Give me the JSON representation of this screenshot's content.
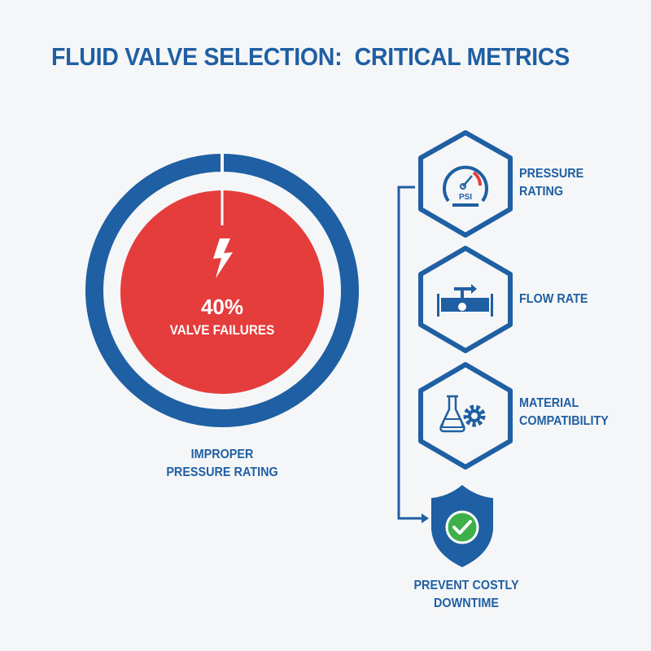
{
  "title": "FLUID VALVE SELECTION:  CRITICAL METRICS",
  "stat": {
    "percent": "40%",
    "label": "VALVE FAILURES",
    "fraction": 0.4,
    "icon": "lightning-bolt-icon"
  },
  "stat_caption": {
    "line1": "IMPROPER",
    "line2": "PRESSURE RATING"
  },
  "metrics": [
    {
      "line1": "PRESSURE",
      "line2": "RATING",
      "icon": "pressure-gauge-icon",
      "gauge_label": "PSI"
    },
    {
      "line1": "FLOW RATE",
      "line2": "",
      "icon": "pipe-flow-icon"
    },
    {
      "line1": "MATERIAL",
      "line2": "COMPATIBILITY",
      "icon": "flask-gear-icon"
    }
  ],
  "outcome": {
    "line1": "PREVENT COSTLY",
    "line2": "DOWNTIME",
    "icon": "shield-check-icon"
  },
  "colors": {
    "blue": "#1f5fa3",
    "red": "#e53c3c",
    "green": "#3db04a",
    "background": "#f5f6f7"
  }
}
